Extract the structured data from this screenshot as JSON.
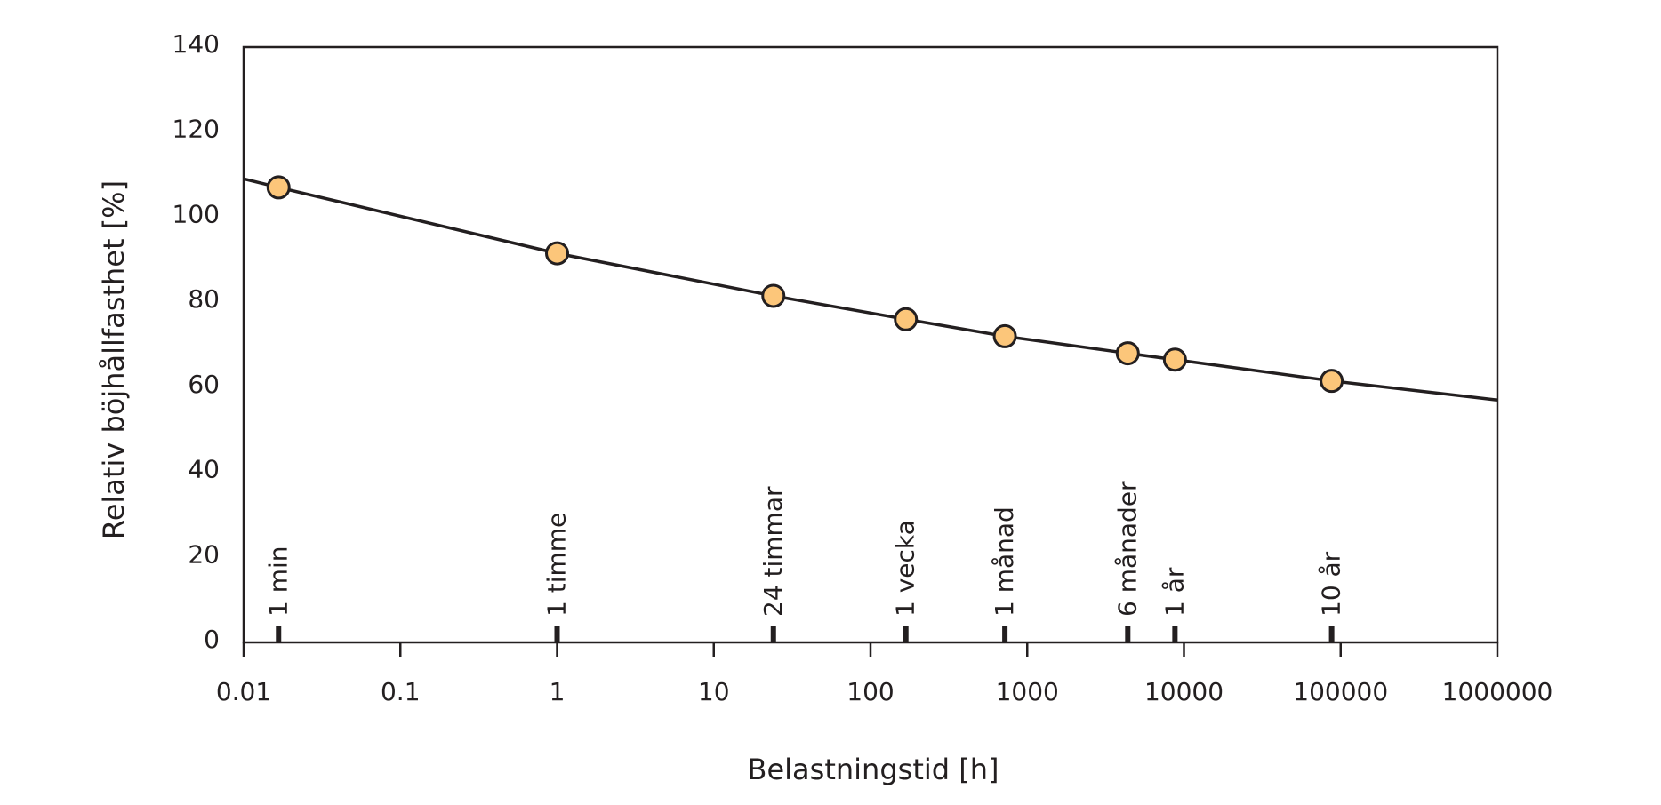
{
  "chart_data": {
    "type": "line",
    "x_label": "Belastningstid [h]",
    "y_label": "Relativ böjhållfasthet [%]",
    "log_x": true,
    "xlim": [
      0.01,
      1000000
    ],
    "xticks": [
      0.01,
      0.1,
      1,
      10,
      100,
      1000,
      10000,
      100000,
      1000000
    ],
    "ylim": [
      0,
      140
    ],
    "yticks": [
      0,
      20,
      40,
      60,
      80,
      100,
      120,
      140
    ],
    "curve": {
      "color": "#231f20",
      "x": [
        0.01,
        0.0167,
        1,
        24,
        168,
        720,
        4380,
        8760,
        87600,
        1000000
      ],
      "values": [
        109,
        107,
        91.5,
        81.5,
        76,
        72,
        68,
        66.5,
        61.5,
        57
      ]
    },
    "points": {
      "color": "#fcc67a",
      "x": [
        0.0167,
        1,
        24,
        168,
        720,
        4380,
        8760,
        87600
      ],
      "values": [
        107,
        91.5,
        81.5,
        76,
        72,
        68,
        66.5,
        61.5
      ],
      "labels": [
        "1 min",
        "1 timme",
        "24 timmar",
        "1 vecka",
        "1 månad",
        "6 månader",
        "1 år",
        "10 år"
      ]
    }
  }
}
